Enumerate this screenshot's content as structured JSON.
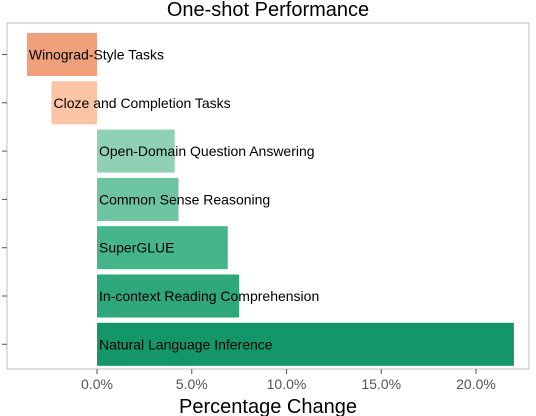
{
  "chart_data": {
    "type": "bar",
    "orientation": "horizontal",
    "title": "One-shot Performance",
    "xlabel": "Percentage Change",
    "ylabel": "",
    "xlim": [
      -5.0,
      23.0
    ],
    "x_ticks": [
      0,
      5,
      10,
      15,
      20
    ],
    "x_tick_labels": [
      "0.0%",
      "5.0%",
      "10.0%",
      "15.0%",
      "20.0%"
    ],
    "grid": false,
    "categories": [
      "Winograd-Style Tasks",
      "Cloze and Completion Tasks",
      "Open-Domain Question Answering",
      "Common Sense Reasoning",
      "SuperGLUE",
      "In-context Reading Comprehension",
      "Natural Language Inference"
    ],
    "values": [
      -3.7,
      -2.4,
      4.1,
      4.3,
      6.9,
      7.5,
      22.0
    ],
    "colors": [
      "#f1a07c",
      "#fbc4a4",
      "#8fd1b4",
      "#6cc4a0",
      "#45b58a",
      "#2ea87b",
      "#139669"
    ]
  }
}
